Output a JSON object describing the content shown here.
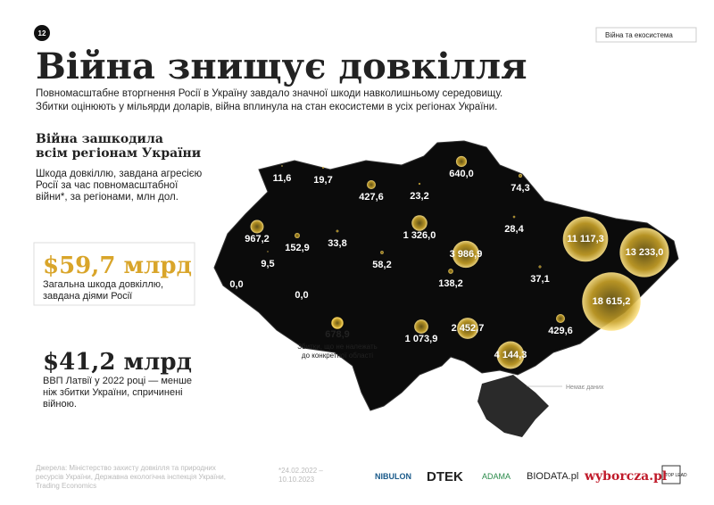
{
  "page_number": "12",
  "section_tab": "Війна та екосистема",
  "title": "Війна знищує довкілля",
  "intro": [
    "Повномасштабне вторгнення Росії в Україну завдало значної шкоди навколишньому середовищу.",
    "Збитки оцінюють у мільярди доларів, війна вплинула на стан екосистеми в усіх регіонах України."
  ],
  "subtitle": [
    "Війна зашкодила",
    "всім регіонам України"
  ],
  "description": [
    "Шкода довкіллю, завдана агресією",
    "Росії за час повномасштабної",
    "війни*, за регіонами, млн дол."
  ],
  "total": {
    "value": "$59,7 млрд",
    "caption": [
      "Загальна шкода довкіллю,",
      "завдана діями Росії"
    ]
  },
  "comparison": {
    "value": "$41,2 млрд",
    "caption": [
      "ВВП Латвії у 2022 році — менше",
      "ніж збитки України, спричинені",
      "війною."
    ]
  },
  "map": {
    "values": [
      11.6,
      19.7,
      427.6,
      23.2,
      640.0,
      74.3,
      967.2,
      152.9,
      33.8,
      1326.0,
      3986.9,
      28.4,
      11117.3,
      13233.0,
      9.5,
      58.2,
      0.0,
      0.0,
      138.2,
      37.1,
      18615.2,
      1073.9,
      2452.7,
      429.6,
      4144.3
    ],
    "value_labels": [
      "11,6",
      "19,7",
      "427,6",
      "23,2",
      "640,0",
      "74,3",
      "967,2",
      "152,9",
      "33,8",
      "1 326,0",
      "3 986,9",
      "28,4",
      "11 117,3",
      "13 233,0",
      "9,5",
      "58,2",
      "0,0",
      "0,0",
      "138,2",
      "37,1",
      "18 615,2",
      "1 073,9",
      "2 452,7",
      "429,6",
      "4 144,3"
    ],
    "unassigned": {
      "value": 678.9,
      "value_label": "678,9",
      "caption": [
        "Збитки, що не належать",
        "до конкретної області"
      ]
    },
    "no_data_label": "Немає даних"
  },
  "footer": {
    "source": [
      "Джерела: Міністерство захисту довкілля та природних",
      "ресурсів України, Державна екологічна інспекція України,",
      "Trading Economics"
    ],
    "period": [
      "*24.02.2022 –",
      "10.10.2023"
    ]
  },
  "logos": [
    "NIBULON",
    "DTEK",
    "ADAMA",
    "BIODATA.pl",
    "wyborcza.pl",
    "TOP LEAD"
  ]
}
